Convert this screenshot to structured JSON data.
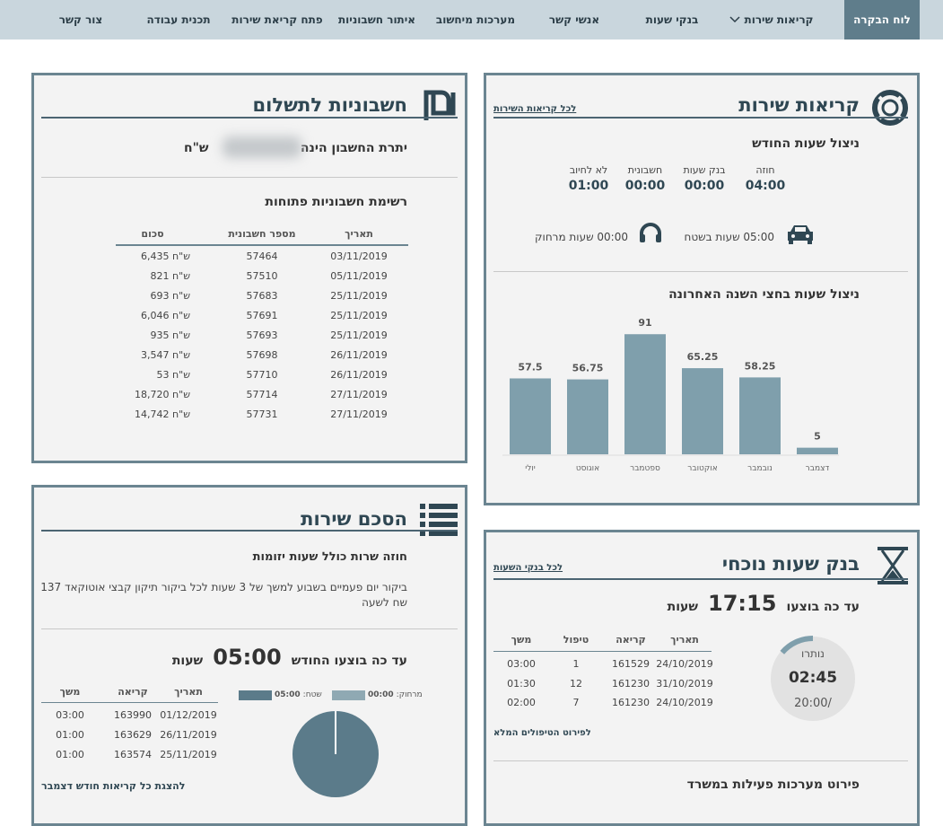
{
  "nav": {
    "items": [
      "לוח הבקרה",
      "קריאות שירות",
      "בנקי שעות",
      "אנשי קשר",
      "מערכות מיחשוב",
      "איתור חשבוניות",
      "פתח קריאת שירות",
      "תכנית עבודה",
      "צור קשר"
    ]
  },
  "service_calls": {
    "title": "קריאות שירות",
    "link": "לכל קריאות השירות",
    "month_title": "ניצול שעות החודש",
    "stats": [
      {
        "label": "חוזה",
        "value": "04:00"
      },
      {
        "label": "בנק שעות",
        "value": "00:00"
      },
      {
        "label": "חשבונית",
        "value": "00:00"
      },
      {
        "label": "לא לחיוב",
        "value": "01:00"
      }
    ],
    "field": "05:00 שעות בשטח",
    "remote": "00:00 שעות מרחוק",
    "chart": {
      "type": "bar",
      "title": "ניצול שעות בחצי השנה האחרונה",
      "categories": [
        "יולי",
        "אוגוסט",
        "ספטמבר",
        "אוקטובר",
        "נובמבר",
        "דצמבר"
      ],
      "values": [
        57.5,
        56.75,
        91,
        65.25,
        58.25,
        5
      ],
      "color": "#7f9fac"
    }
  },
  "invoices": {
    "title": "חשבוניות לתשלום",
    "balance_label": "יתרת החשבון הינה",
    "currency": "ש\"ח",
    "list_title": "רשימת חשבוניות פתוחות",
    "columns": [
      "תאריך",
      "מספר חשבונית",
      "סכום"
    ],
    "rows": [
      [
        "03/11/2019",
        "57464",
        "6,435 ש\"ח"
      ],
      [
        "05/11/2019",
        "57510",
        "821 ש\"ח"
      ],
      [
        "25/11/2019",
        "57683",
        "693 ש\"ח"
      ],
      [
        "25/11/2019",
        "57691",
        "6,046 ש\"ח"
      ],
      [
        "25/11/2019",
        "57693",
        "935 ש\"ח"
      ],
      [
        "26/11/2019",
        "57698",
        "3,547 ש\"ח"
      ],
      [
        "26/11/2019",
        "57710",
        "53 ש\"ח"
      ],
      [
        "27/11/2019",
        "57714",
        "18,720 ש\"ח"
      ],
      [
        "27/11/2019",
        "57731",
        "14,742 ש\"ח"
      ]
    ]
  },
  "agreement": {
    "title": "הסכם שירות",
    "contract": "חוזה שרות כולל שעות יזומות",
    "description": "ביקור יום פעמיים בשבוע למשך של 3 שעות לכל ביקור תיקון קבצי אוטוקאד 137 שח לשעה",
    "done_label": "עד כה בוצעו החודש",
    "done_value": "05:00",
    "done_unit": "שעות",
    "pie": {
      "type": "pie",
      "series": [
        {
          "name": "מרחוק:",
          "value": 0,
          "value_label": "00:00",
          "color": "#8fa9b3"
        },
        {
          "name": "שטח:",
          "value": 5,
          "value_label": "05:00",
          "color": "#5b7b8a"
        }
      ]
    },
    "columns": [
      "תאריך",
      "קריאה",
      "משך"
    ],
    "rows": [
      [
        "01/12/2019",
        "163990",
        "03:00"
      ],
      [
        "26/11/2019",
        "163629",
        "01:00"
      ],
      [
        "25/11/2019",
        "163574",
        "01:00"
      ]
    ],
    "link": "להצגת כל קריאות חודש דצמבר"
  },
  "hours_bank": {
    "title": "בנק שעות נוכחי",
    "link": "לכל בנקי השעות",
    "done_label": "עד כה בוצעו",
    "done_value": "17:15",
    "done_unit": "שעות",
    "remaining_label": "נותרו",
    "remaining": "02:45",
    "total": "/20:00",
    "columns": [
      "תאריך",
      "קריאה",
      "טיפול",
      "משך"
    ],
    "rows": [
      [
        "24/10/2019",
        "161529",
        "1",
        "03:00"
      ],
      [
        "31/10/2019",
        "161230",
        "12",
        "01:30"
      ],
      [
        "24/10/2019",
        "161230",
        "7",
        "02:00"
      ]
    ],
    "details_link": "לפירוט הטיפולים המלא",
    "systems_title": "פירוט מערכות פעילות במשרד"
  }
}
